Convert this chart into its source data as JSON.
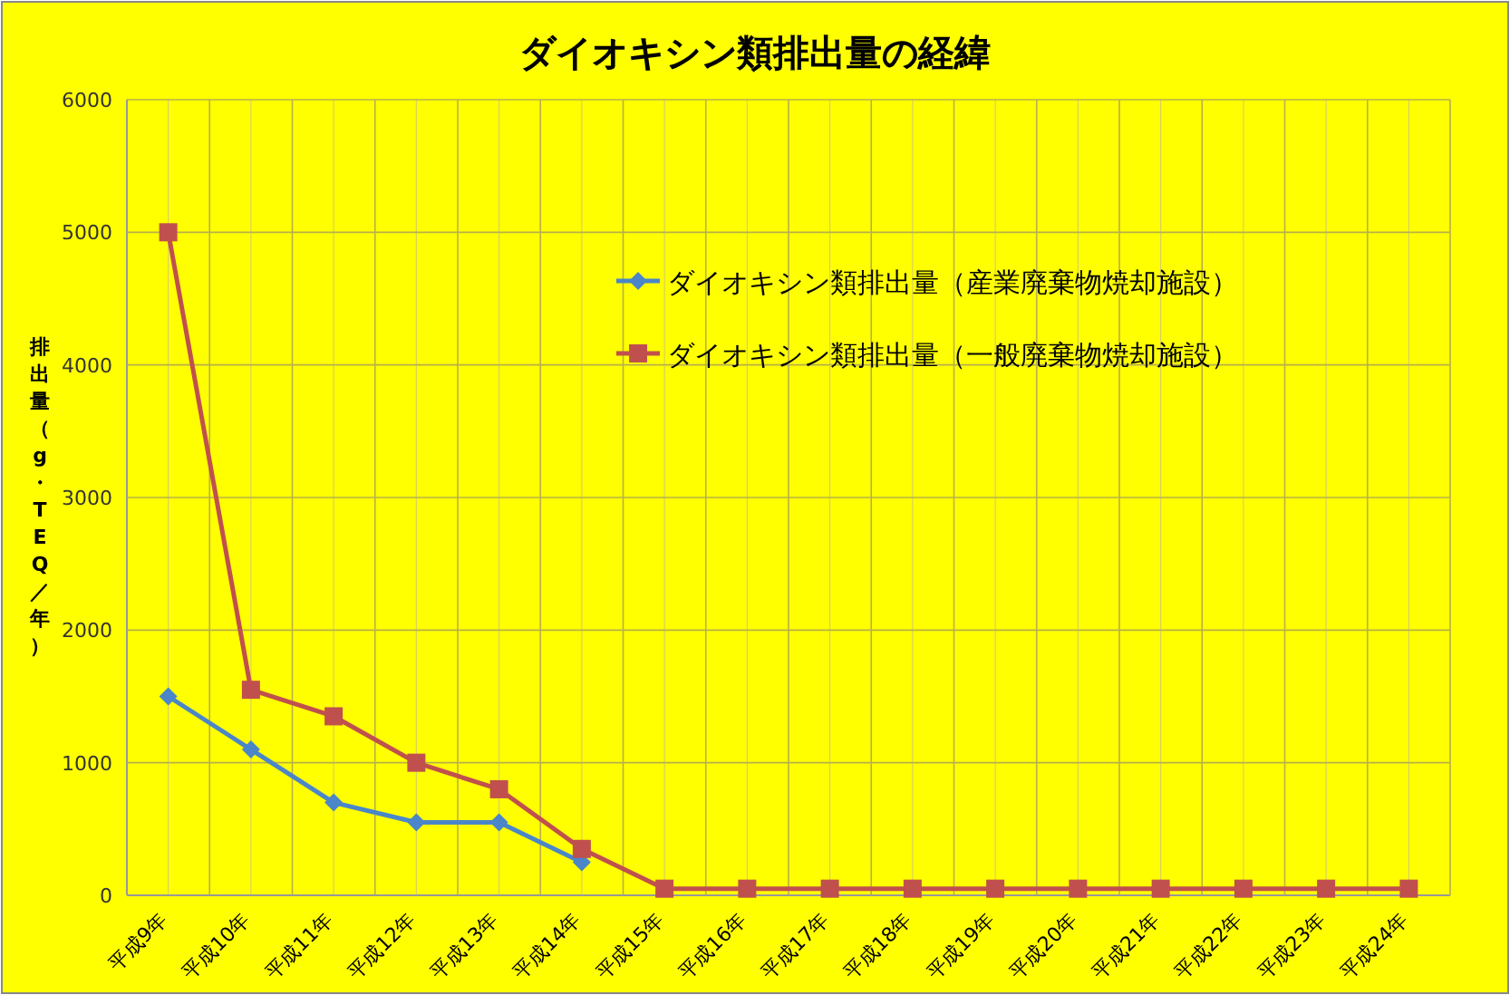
{
  "chart_data": {
    "type": "line",
    "title": "ダイオキシン類排出量の経緯",
    "ylabel": "排出量（g・TEQ／年）",
    "categories": [
      "平成9年",
      "平成10年",
      "平成11年",
      "平成12年",
      "平成13年",
      "平成14年",
      "平成15年",
      "平成16年",
      "平成17年",
      "平成18年",
      "平成19年",
      "平成20年",
      "平成21年",
      "平成22年",
      "平成23年",
      "平成24年"
    ],
    "series": [
      {
        "name": "ダイオキシン類排出量（産業廃棄物焼却施設）",
        "color": "#4a86c8",
        "marker": "diamond",
        "values": [
          1500,
          1100,
          700,
          550,
          550,
          250,
          null,
          null,
          null,
          null,
          null,
          null,
          null,
          null,
          null,
          null
        ]
      },
      {
        "name": "ダイオキシン類排出量（一般廃棄物焼却施設）",
        "color": "#c0504d",
        "marker": "square",
        "values": [
          5000,
          1550,
          1350,
          1000,
          800,
          350,
          50,
          50,
          50,
          50,
          50,
          50,
          50,
          50,
          50,
          50
        ]
      }
    ],
    "ylim": [
      0,
      6000
    ],
    "yticks": [
      0,
      1000,
      2000,
      3000,
      4000,
      5000,
      6000
    ],
    "grid": true,
    "legend": "top right",
    "line_style": "solid"
  }
}
